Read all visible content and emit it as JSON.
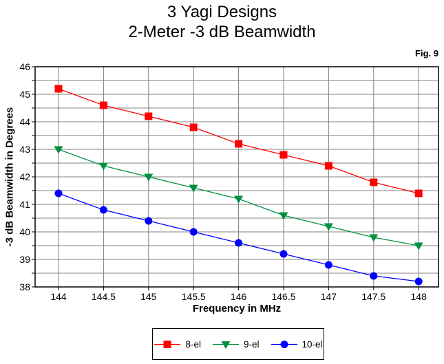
{
  "chart_data": {
    "type": "line",
    "title_lines": [
      "3 Yagi Designs",
      "2-Meter -3 dB Beamwidth"
    ],
    "annotation": "Fig. 9",
    "xlabel": "Frequency in MHz",
    "ylabel": "-3 dB Beamwidth in Degrees",
    "x": [
      144,
      144.5,
      145,
      145.5,
      146,
      146.5,
      147,
      147.5,
      148
    ],
    "x_tick_labels": [
      "144",
      "144.5",
      "145",
      "145.5",
      "146",
      "146.5",
      "147",
      "147.5",
      "148"
    ],
    "y_tick_values": [
      38,
      39,
      40,
      41,
      42,
      43,
      44,
      45,
      46
    ],
    "xlim": [
      143.74,
      148.22
    ],
    "ylim": [
      38,
      46
    ],
    "y_grid_step": 0.5,
    "grid": "on, gray, every 0.5 in both axes",
    "legend_position": "bottom-center, boxed",
    "series": [
      {
        "name": "8-el",
        "marker": "square",
        "color": "#FF0000",
        "values": [
          45.2,
          44.6,
          44.2,
          43.8,
          43.2,
          42.8,
          42.4,
          41.8,
          41.4
        ]
      },
      {
        "name": "9-el",
        "marker": "triangle-down",
        "color": "#009140",
        "values": [
          43.0,
          42.4,
          42.0,
          41.6,
          41.2,
          40.6,
          40.2,
          39.8,
          39.5
        ]
      },
      {
        "name": "10-el",
        "marker": "circle",
        "color": "#0000FF",
        "values": [
          41.4,
          40.8,
          40.4,
          40.0,
          39.6,
          39.2,
          38.8,
          38.4,
          38.2
        ]
      }
    ],
    "colors": {
      "background": "#FFFFFF",
      "grid": "#808080",
      "frame": "#000000",
      "text": "#000000"
    }
  }
}
